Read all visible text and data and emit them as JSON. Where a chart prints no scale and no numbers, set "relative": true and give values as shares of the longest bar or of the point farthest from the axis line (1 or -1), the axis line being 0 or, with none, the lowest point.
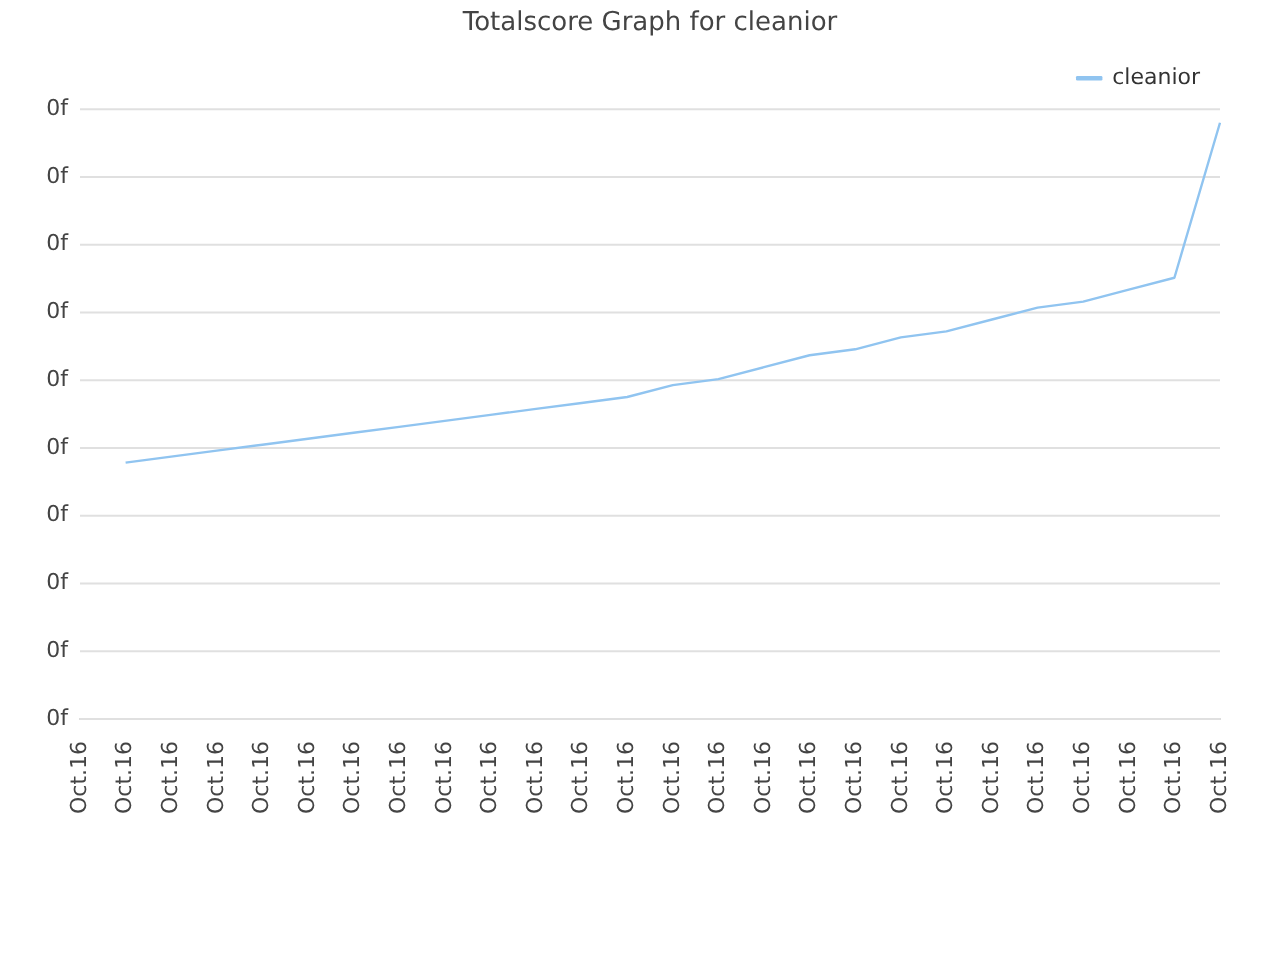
{
  "chart_data": {
    "type": "line",
    "title": "Totalscore Graph for cleanior",
    "relative": true,
    "categories": [
      "Oct.16",
      "Oct.16",
      "Oct.16",
      "Oct.16",
      "Oct.16",
      "Oct.16",
      "Oct.16",
      "Oct.16",
      "Oct.16",
      "Oct.16",
      "Oct.16",
      "Oct.16",
      "Oct.16",
      "Oct.16",
      "Oct.16",
      "Oct.16",
      "Oct.16",
      "Oct.16",
      "Oct.16",
      "Oct.16",
      "Oct.16",
      "Oct.16",
      "Oct.16",
      "Oct.16",
      "Oct.16",
      "Oct.16"
    ],
    "annotations": [
      "0f",
      "0f",
      "0f",
      "0f",
      "0f",
      "0f",
      "0f",
      "0f",
      "0f",
      "0f"
    ],
    "grid": "y",
    "legend": "top right",
    "marker": "none",
    "series": [
      {
        "name": "cleanior",
        "color": "#90c4f0",
        "values": [
          null,
          0.43,
          0.44,
          0.45,
          0.46,
          0.47,
          0.48,
          0.49,
          0.5,
          0.51,
          0.52,
          0.53,
          0.54,
          0.56,
          0.57,
          0.59,
          0.61,
          0.62,
          0.64,
          0.65,
          0.67,
          0.69,
          0.7,
          0.72,
          0.74,
          1
        ]
      }
    ]
  }
}
